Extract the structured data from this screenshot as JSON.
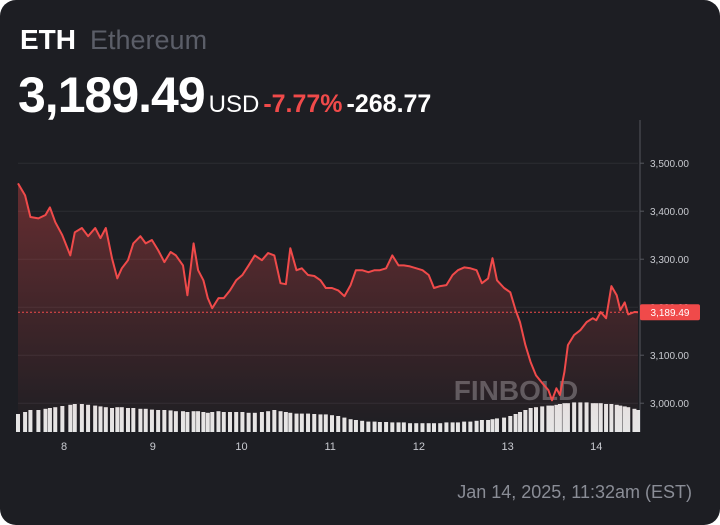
{
  "header": {
    "symbol": "ETH",
    "name": "Ethereum",
    "price": "3,189.49",
    "currency": "USD",
    "change_percent": "-7.77%",
    "change": "-268.77"
  },
  "chart_data": {
    "type": "line",
    "color": "#f04a4a",
    "x": [
      7.48,
      7.56,
      7.62,
      7.71,
      7.79,
      7.84,
      7.9,
      7.98,
      8.07,
      8.12,
      8.2,
      8.27,
      8.35,
      8.41,
      8.47,
      8.54,
      8.6,
      8.65,
      8.72,
      8.78,
      8.86,
      8.92,
      8.99,
      9.06,
      9.13,
      9.2,
      9.26,
      9.34,
      9.39,
      9.46,
      9.51,
      9.57,
      9.62,
      9.67,
      9.74,
      9.8,
      9.87,
      9.94,
      10.01,
      10.08,
      10.15,
      10.23,
      10.3,
      10.37,
      10.44,
      10.5,
      10.55,
      10.62,
      10.68,
      10.75,
      10.82,
      10.89,
      10.95,
      11.02,
      11.09,
      11.16,
      11.23,
      11.29,
      11.36,
      11.43,
      11.5,
      11.56,
      11.63,
      11.7,
      11.77,
      11.83,
      11.9,
      11.97,
      12.04,
      12.11,
      12.17,
      12.24,
      12.31,
      12.38,
      12.44,
      12.51,
      12.58,
      12.65,
      12.71,
      12.78,
      12.83,
      12.88,
      12.96,
      13.03,
      13.09,
      13.14,
      13.2,
      13.26,
      13.32,
      13.39,
      13.46,
      13.5,
      13.55,
      13.59,
      13.64,
      13.68,
      13.75,
      13.82,
      13.89,
      13.96,
      14.0,
      14.05,
      14.11,
      14.17,
      14.23,
      14.27,
      14.32,
      14.36,
      14.43,
      14.47
    ],
    "values": [
      3458,
      3433,
      3388,
      3385,
      3392,
      3408,
      3377,
      3350,
      3308,
      3356,
      3365,
      3348,
      3365,
      3344,
      3365,
      3302,
      3260,
      3281,
      3298,
      3333,
      3348,
      3333,
      3340,
      3319,
      3294,
      3315,
      3308,
      3287,
      3225,
      3333,
      3277,
      3256,
      3219,
      3198,
      3219,
      3219,
      3235,
      3256,
      3267,
      3287,
      3308,
      3298,
      3313,
      3308,
      3250,
      3248,
      3323,
      3277,
      3281,
      3267,
      3265,
      3256,
      3240,
      3240,
      3235,
      3223,
      3246,
      3277,
      3277,
      3273,
      3277,
      3277,
      3281,
      3308,
      3287,
      3287,
      3285,
      3281,
      3277,
      3267,
      3240,
      3244,
      3246,
      3267,
      3277,
      3283,
      3281,
      3277,
      3250,
      3260,
      3302,
      3256,
      3240,
      3231,
      3194,
      3169,
      3121,
      3085,
      3058,
      3042,
      3027,
      3006,
      3031,
      3017,
      3065,
      3121,
      3142,
      3152,
      3169,
      3177,
      3173,
      3190,
      3177,
      3244,
      3225,
      3194,
      3210,
      3185,
      3190,
      3189.49
    ],
    "volume": {
      "color": "#e6e6e6",
      "values": [
        45,
        50,
        55,
        55,
        58,
        60,
        62,
        65,
        68,
        70,
        70,
        68,
        66,
        64,
        62,
        60,
        62,
        62,
        60,
        60,
        58,
        58,
        56,
        55,
        55,
        54,
        52,
        52,
        50,
        52,
        52,
        50,
        48,
        50,
        52,
        50,
        50,
        50,
        50,
        48,
        48,
        50,
        52,
        55,
        52,
        50,
        48,
        46,
        46,
        46,
        45,
        44,
        44,
        42,
        40,
        36,
        32,
        30,
        28,
        26,
        26,
        25,
        25,
        24,
        24,
        24,
        22,
        22,
        22,
        22,
        22,
        22,
        24,
        24,
        24,
        26,
        26,
        28,
        30,
        30,
        32,
        34,
        36,
        40,
        45,
        50,
        55,
        60,
        62,
        64,
        66,
        66,
        68,
        70,
        72,
        72,
        74,
        74,
        74,
        72,
        72,
        72,
        70,
        70,
        68,
        66,
        64,
        62,
        58,
        55
      ]
    },
    "y2lim": [
      0,
      100
    ],
    "xlim": [
      7.48,
      14.47
    ],
    "xticks": [
      8,
      9,
      10,
      11,
      12,
      13,
      14
    ],
    "ylim": [
      2940,
      3590
    ],
    "yticks": [
      {
        "value": 3000,
        "label": "3,000.00"
      },
      {
        "value": 3100,
        "label": "3,100.00"
      },
      {
        "value": 3200,
        "label": "3,200.00"
      },
      {
        "value": 3300,
        "label": "3,300.00"
      },
      {
        "value": 3400,
        "label": "3,400.00"
      },
      {
        "value": 3500,
        "label": "3,500.00"
      }
    ],
    "grid": true,
    "watermark": "FINBOLD"
  },
  "timestamp": "Jan 14, 2025, 11:32am (EST)"
}
